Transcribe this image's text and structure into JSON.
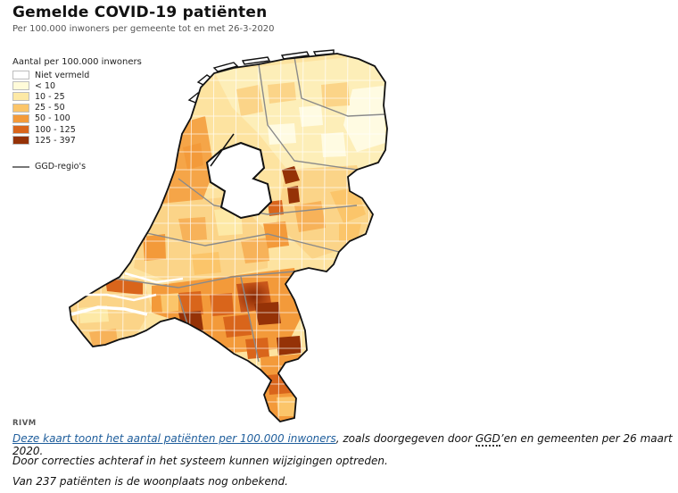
{
  "title": "Gemelde COVID-19 patiënten",
  "subtitle": "Per 100.000 inwoners per gemeente tot en met 26-3-2020",
  "legend": {
    "title": "Aantal per 100.000 inwoners",
    "items": [
      {
        "label": "Niet vermeld",
        "color": "#ffffff"
      },
      {
        "label": "< 10",
        "color": "#fffbd9"
      },
      {
        "label": "10 - 25",
        "color": "#fde9a6"
      },
      {
        "label": "25 - 50",
        "color": "#fbc56a"
      },
      {
        "label": "50 - 100",
        "color": "#f39a3a"
      },
      {
        "label": "100 - 125",
        "color": "#d9651b"
      },
      {
        "label": "125 - 397",
        "color": "#953207"
      }
    ],
    "line_label": "GGD-regio's"
  },
  "source": "RIVM",
  "caption": {
    "link_text": "Deze kaart toont het aantal patiënten per 100.000 inwoners",
    "text_a": ", zoals doorgegeven door ",
    "abbr": "GGD",
    "text_b": "’en en gemeenten per 26 maart 2020.",
    "line2": "Door correcties achteraf in het systeem kunnen wijzigingen optreden.",
    "line3": "Van 237 patiënten is de woonplaats nog onbekend."
  }
}
